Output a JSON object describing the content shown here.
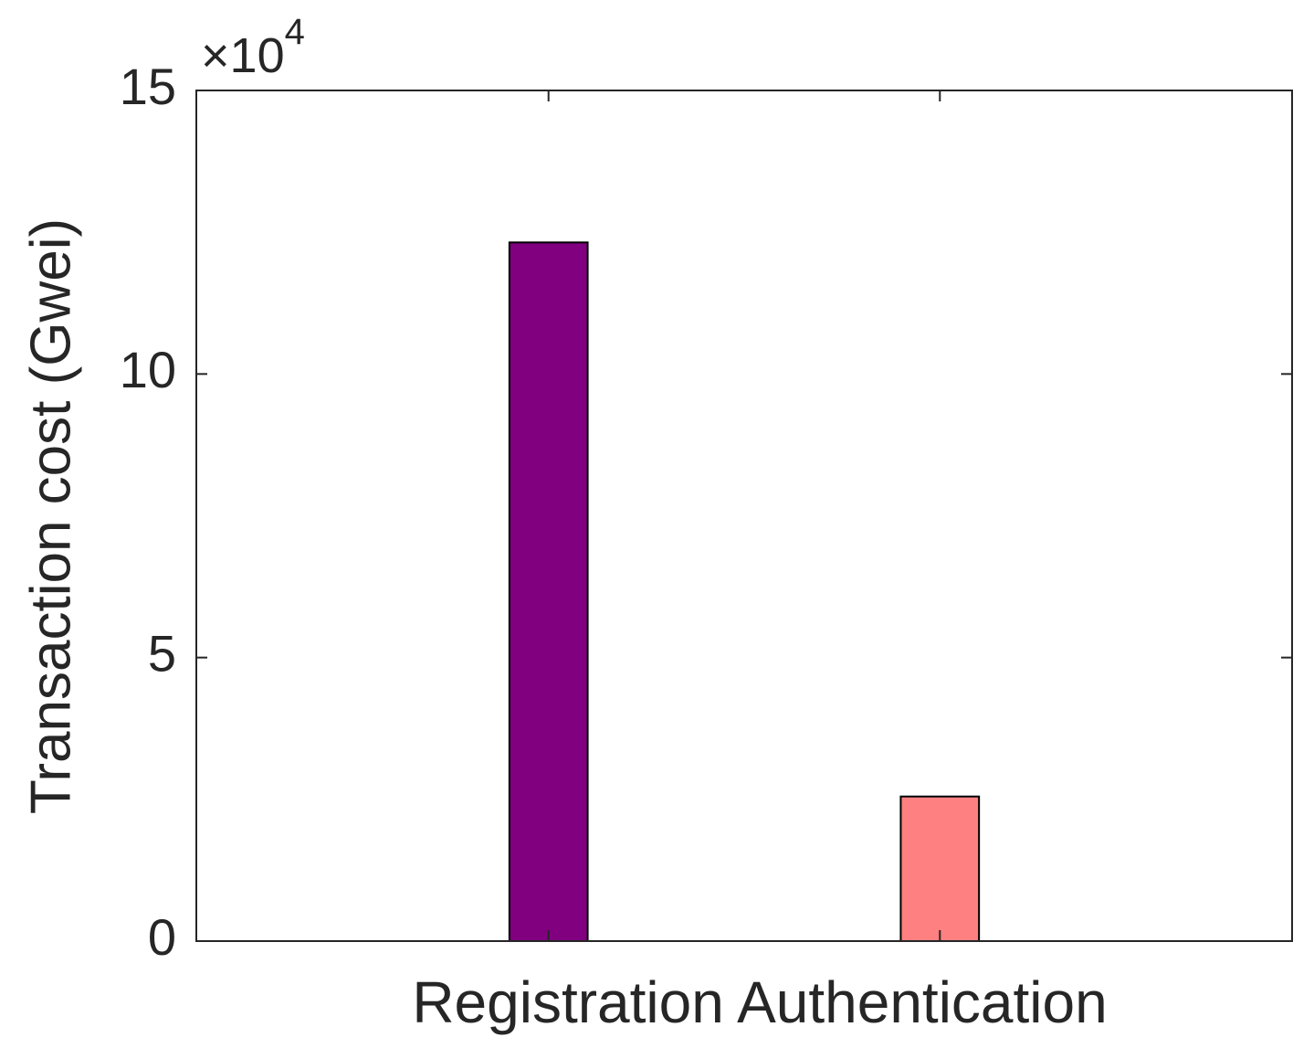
{
  "chart_data": {
    "type": "bar",
    "y_label": "Transaction cost (Gwei)",
    "x_label": "Registration Authentication",
    "y_multiplier": {
      "base": "×10",
      "exponent": "4"
    },
    "categories": [
      null,
      null
    ],
    "values": [
      12.32,
      2.55
    ],
    "colors": [
      "#800080",
      "#ff8080"
    ],
    "ylim": [
      0,
      15
    ],
    "yticks": [
      0,
      5,
      10,
      15
    ],
    "grid": false
  }
}
